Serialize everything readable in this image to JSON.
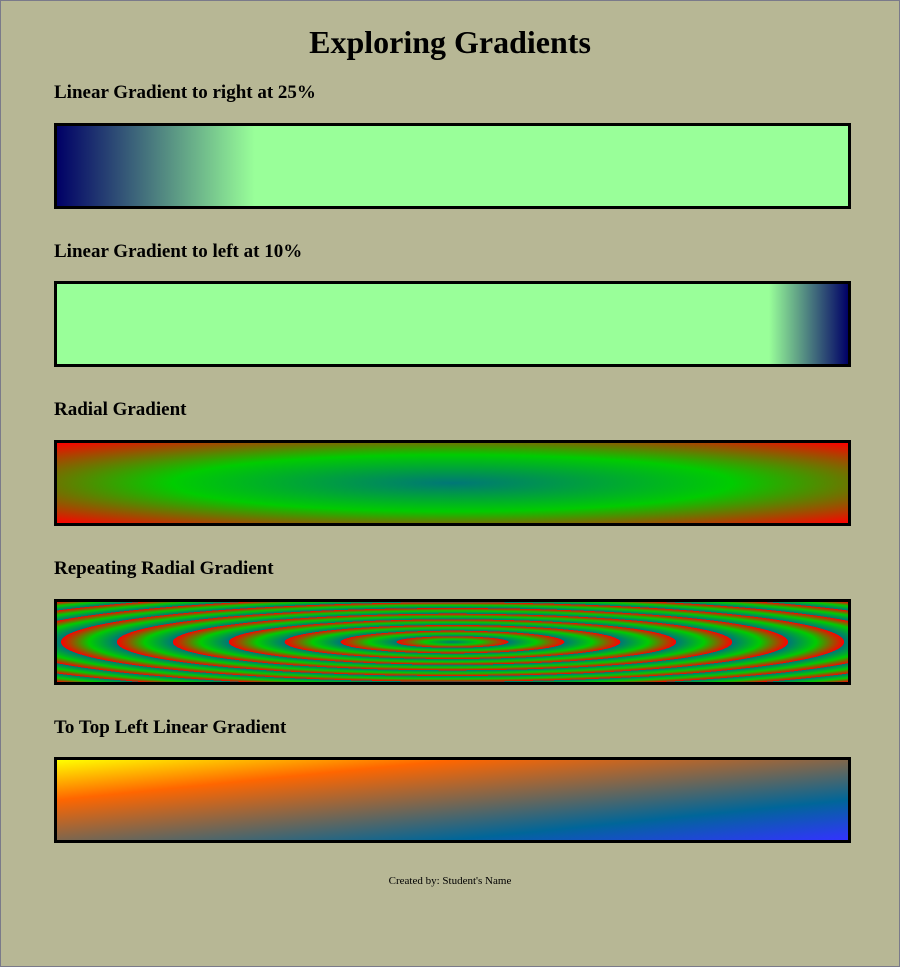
{
  "page": {
    "title": "Exploring Gradients",
    "footer": "Created by: Student's Name"
  },
  "sections": [
    {
      "heading": "Linear Gradient to right at 25%"
    },
    {
      "heading": "Linear Gradient to left at 10%"
    },
    {
      "heading": "Radial Gradient"
    },
    {
      "heading": "Repeating Radial Gradient"
    },
    {
      "heading": "To Top Left Linear Gradient"
    }
  ],
  "colors": {
    "page_background": "#b7b795",
    "navy": "#000066",
    "light_green": "#99ff99",
    "teal": "#007777",
    "green": "#00cc00",
    "red": "#ff0000",
    "blue": "#3333ff",
    "ocean": "#006699",
    "orange": "#ff6600",
    "yellow": "#ffff00"
  }
}
